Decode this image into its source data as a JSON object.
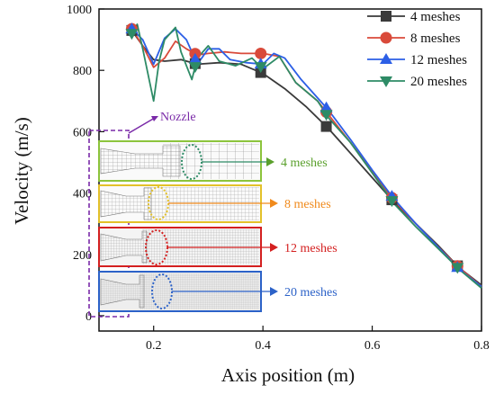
{
  "chart_data": {
    "type": "line",
    "xlabel": "Axis position (m)",
    "ylabel": "Velocity (m/s)",
    "xlim": [
      0.1,
      0.8
    ],
    "ylim": [
      -50,
      1000
    ],
    "x_ticks": [
      "0.2",
      "0.4",
      "0.6",
      "0.8"
    ],
    "y_ticks": [
      "0",
      "200",
      "400",
      "600",
      "800",
      "1000"
    ],
    "legend_placement": "top-right",
    "series": [
      {
        "name": "4 meshes",
        "color": "#3a3a3a",
        "marker": "square",
        "points": [
          [
            0.16,
            930
          ],
          [
            0.18,
            880
          ],
          [
            0.2,
            835
          ],
          [
            0.22,
            830
          ],
          [
            0.25,
            835
          ],
          [
            0.28,
            820
          ],
          [
            0.32,
            825
          ],
          [
            0.36,
            820
          ],
          [
            0.4,
            790
          ],
          [
            0.44,
            740
          ],
          [
            0.48,
            680
          ],
          [
            0.52,
            610
          ],
          [
            0.56,
            530
          ],
          [
            0.6,
            450
          ],
          [
            0.64,
            370
          ],
          [
            0.68,
            300
          ],
          [
            0.72,
            230
          ],
          [
            0.76,
            155
          ],
          [
            0.8,
            100
          ]
        ],
        "marker_x": [
          0.16,
          0.276,
          0.396,
          0.516,
          0.636,
          0.756
        ]
      },
      {
        "name": "8 meshes",
        "color": "#d94a3a",
        "marker": "circle",
        "points": [
          [
            0.16,
            935
          ],
          [
            0.18,
            880
          ],
          [
            0.2,
            810
          ],
          [
            0.22,
            840
          ],
          [
            0.24,
            895
          ],
          [
            0.26,
            870
          ],
          [
            0.28,
            850
          ],
          [
            0.3,
            855
          ],
          [
            0.33,
            860
          ],
          [
            0.36,
            855
          ],
          [
            0.4,
            855
          ],
          [
            0.43,
            845
          ],
          [
            0.46,
            760
          ],
          [
            0.5,
            700
          ],
          [
            0.52,
            655
          ],
          [
            0.56,
            565
          ],
          [
            0.6,
            470
          ],
          [
            0.64,
            375
          ],
          [
            0.68,
            300
          ],
          [
            0.72,
            225
          ],
          [
            0.76,
            155
          ],
          [
            0.8,
            95
          ]
        ],
        "marker_x": [
          0.16,
          0.276,
          0.396,
          0.516,
          0.636,
          0.756
        ]
      },
      {
        "name": "12 meshes",
        "color": "#2c5fe6",
        "marker": "triangle-up",
        "points": [
          [
            0.16,
            935
          ],
          [
            0.18,
            900
          ],
          [
            0.2,
            820
          ],
          [
            0.22,
            905
          ],
          [
            0.24,
            935
          ],
          [
            0.26,
            900
          ],
          [
            0.28,
            820
          ],
          [
            0.3,
            870
          ],
          [
            0.32,
            870
          ],
          [
            0.34,
            835
          ],
          [
            0.37,
            825
          ],
          [
            0.4,
            820
          ],
          [
            0.42,
            855
          ],
          [
            0.44,
            840
          ],
          [
            0.47,
            770
          ],
          [
            0.5,
            710
          ],
          [
            0.52,
            670
          ],
          [
            0.56,
            575
          ],
          [
            0.6,
            475
          ],
          [
            0.64,
            380
          ],
          [
            0.68,
            300
          ],
          [
            0.72,
            225
          ],
          [
            0.76,
            150
          ],
          [
            0.8,
            95
          ]
        ],
        "marker_x": [
          0.16,
          0.276,
          0.396,
          0.516,
          0.636,
          0.756
        ]
      },
      {
        "name": "20 meshes",
        "color": "#2e8b66",
        "marker": "triangle-down",
        "points": [
          [
            0.16,
            920
          ],
          [
            0.17,
            950
          ],
          [
            0.18,
            870
          ],
          [
            0.2,
            700
          ],
          [
            0.21,
            830
          ],
          [
            0.22,
            900
          ],
          [
            0.24,
            940
          ],
          [
            0.25,
            860
          ],
          [
            0.27,
            770
          ],
          [
            0.28,
            840
          ],
          [
            0.3,
            880
          ],
          [
            0.32,
            830
          ],
          [
            0.35,
            815
          ],
          [
            0.38,
            840
          ],
          [
            0.4,
            805
          ],
          [
            0.43,
            845
          ],
          [
            0.46,
            760
          ],
          [
            0.5,
            700
          ],
          [
            0.52,
            645
          ],
          [
            0.56,
            565
          ],
          [
            0.6,
            465
          ],
          [
            0.64,
            365
          ],
          [
            0.68,
            290
          ],
          [
            0.72,
            220
          ],
          [
            0.76,
            150
          ],
          [
            0.8,
            90
          ]
        ],
        "marker_x": [
          0.16,
          0.276,
          0.396,
          0.516,
          0.636,
          0.756
        ]
      }
    ],
    "annotations": [
      {
        "text": "Nozzle",
        "color": "#7a2aa8"
      },
      {
        "text": "4 meshes",
        "color": "#5aa02c",
        "border": "#8cc43c"
      },
      {
        "text": "8 meshes",
        "color": "#f08a1c",
        "border": "#e3c12a"
      },
      {
        "text": "12 meshes",
        "color": "#d42020",
        "border": "#d42020"
      },
      {
        "text": "20 meshes",
        "color": "#2c62c8",
        "border": "#2c62c8"
      }
    ]
  }
}
